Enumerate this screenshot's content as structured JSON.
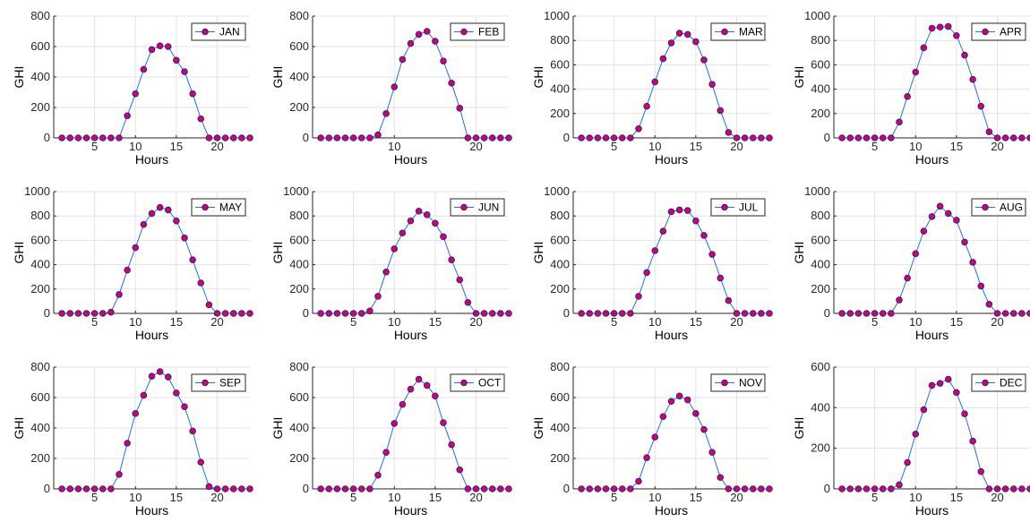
{
  "chart_data": [
    {
      "type": "line",
      "xlabel": "Hours",
      "ylabel": "GHI",
      "xlim": [
        0,
        24
      ],
      "ylim": [
        0,
        800
      ],
      "xticks": [
        5,
        10,
        15,
        20
      ],
      "yticks": [
        0,
        200,
        400,
        600,
        800
      ],
      "grid": true,
      "legend": "top-right",
      "series": [
        {
          "name": "JAN",
          "x": [
            1,
            2,
            3,
            4,
            5,
            6,
            7,
            8,
            9,
            10,
            11,
            12,
            13,
            14,
            15,
            16,
            17,
            18,
            19,
            20,
            21,
            22,
            23,
            24
          ],
          "y": [
            0,
            0,
            0,
            0,
            0,
            0,
            0,
            0,
            145,
            290,
            450,
            580,
            605,
            600,
            510,
            435,
            290,
            125,
            0,
            0,
            0,
            0,
            0,
            0
          ]
        }
      ]
    },
    {
      "type": "line",
      "xlabel": "Hours",
      "ylabel": "GHI",
      "xlim": [
        0,
        24
      ],
      "ylim": [
        0,
        800
      ],
      "xticks": [
        10,
        20
      ],
      "yticks": [
        0,
        200,
        400,
        600,
        800
      ],
      "grid": true,
      "legend": "top-right",
      "series": [
        {
          "name": "FEB",
          "x": [
            1,
            2,
            3,
            4,
            5,
            6,
            7,
            8,
            9,
            10,
            11,
            12,
            13,
            14,
            15,
            16,
            17,
            18,
            19,
            20,
            21,
            22,
            23,
            24
          ],
          "y": [
            0,
            0,
            0,
            0,
            0,
            0,
            0,
            20,
            160,
            335,
            515,
            620,
            680,
            700,
            635,
            505,
            360,
            195,
            0,
            0,
            0,
            0,
            0,
            0
          ]
        }
      ]
    },
    {
      "type": "line",
      "xlabel": "Hours",
      "ylabel": "GHI",
      "xlim": [
        0,
        24
      ],
      "ylim": [
        0,
        1000
      ],
      "xticks": [
        5,
        10,
        15,
        20
      ],
      "yticks": [
        0,
        200,
        400,
        600,
        800,
        1000
      ],
      "grid": true,
      "legend": "top-right",
      "series": [
        {
          "name": "MAR",
          "x": [
            1,
            2,
            3,
            4,
            5,
            6,
            7,
            8,
            9,
            10,
            11,
            12,
            13,
            14,
            15,
            16,
            17,
            18,
            19,
            20,
            21,
            22,
            23,
            24
          ],
          "y": [
            0,
            0,
            0,
            0,
            0,
            0,
            0,
            75,
            260,
            460,
            650,
            780,
            860,
            850,
            790,
            640,
            440,
            225,
            45,
            0,
            0,
            0,
            0,
            0
          ]
        }
      ]
    },
    {
      "type": "line",
      "xlabel": "Hours",
      "ylabel": "GHI",
      "xlim": [
        0,
        24
      ],
      "ylim": [
        0,
        1000
      ],
      "xticks": [
        5,
        10,
        15,
        20
      ],
      "yticks": [
        0,
        200,
        400,
        600,
        800,
        1000
      ],
      "grid": true,
      "legend": "top-right",
      "series": [
        {
          "name": "APR",
          "x": [
            1,
            2,
            3,
            4,
            5,
            6,
            7,
            8,
            9,
            10,
            11,
            12,
            13,
            14,
            15,
            16,
            17,
            18,
            19,
            20,
            21,
            22,
            23,
            24
          ],
          "y": [
            0,
            0,
            0,
            0,
            0,
            0,
            0,
            130,
            340,
            540,
            740,
            900,
            910,
            915,
            840,
            680,
            480,
            260,
            50,
            0,
            0,
            0,
            0,
            0
          ]
        }
      ]
    },
    {
      "type": "line",
      "xlabel": "Hours",
      "ylabel": "GHI",
      "xlim": [
        0,
        24
      ],
      "ylim": [
        0,
        1000
      ],
      "xticks": [
        5,
        10,
        15,
        20
      ],
      "yticks": [
        0,
        200,
        400,
        600,
        800,
        1000
      ],
      "grid": true,
      "legend": "top-right",
      "series": [
        {
          "name": "MAY",
          "x": [
            1,
            2,
            3,
            4,
            5,
            6,
            7,
            8,
            9,
            10,
            11,
            12,
            13,
            14,
            15,
            16,
            17,
            18,
            19,
            20,
            21,
            22,
            23,
            24
          ],
          "y": [
            0,
            0,
            0,
            0,
            0,
            0,
            10,
            155,
            355,
            540,
            730,
            820,
            870,
            850,
            760,
            620,
            440,
            250,
            70,
            0,
            0,
            0,
            0,
            0
          ]
        }
      ]
    },
    {
      "type": "line",
      "xlabel": "Hours",
      "ylabel": "GHI",
      "xlim": [
        0,
        24
      ],
      "ylim": [
        0,
        1000
      ],
      "xticks": [
        5,
        10,
        15,
        20
      ],
      "yticks": [
        0,
        200,
        400,
        600,
        800,
        1000
      ],
      "grid": true,
      "legend": "top-right",
      "series": [
        {
          "name": "JUN",
          "x": [
            1,
            2,
            3,
            4,
            5,
            6,
            7,
            8,
            9,
            10,
            11,
            12,
            13,
            14,
            15,
            16,
            17,
            18,
            19,
            20,
            21,
            22,
            23,
            24
          ],
          "y": [
            0,
            0,
            0,
            0,
            0,
            0,
            20,
            140,
            340,
            530,
            660,
            760,
            840,
            810,
            740,
            630,
            440,
            275,
            90,
            0,
            0,
            0,
            0,
            0
          ]
        }
      ]
    },
    {
      "type": "line",
      "xlabel": "Hours",
      "ylabel": "GHI",
      "xlim": [
        0,
        24
      ],
      "ylim": [
        0,
        1000
      ],
      "xticks": [
        5,
        10,
        15,
        20
      ],
      "yticks": [
        0,
        200,
        400,
        600,
        800,
        1000
      ],
      "grid": true,
      "legend": "top-right",
      "series": [
        {
          "name": "JUL",
          "x": [
            1,
            2,
            3,
            4,
            5,
            6,
            7,
            8,
            9,
            10,
            11,
            12,
            13,
            14,
            15,
            16,
            17,
            18,
            19,
            20,
            21,
            22,
            23,
            24
          ],
          "y": [
            0,
            0,
            0,
            0,
            0,
            0,
            0,
            140,
            335,
            515,
            675,
            835,
            850,
            845,
            760,
            640,
            485,
            290,
            105,
            0,
            0,
            0,
            0,
            0
          ]
        }
      ]
    },
    {
      "type": "line",
      "xlabel": "Hours",
      "ylabel": "GHI",
      "xlim": [
        0,
        24
      ],
      "ylim": [
        0,
        1000
      ],
      "xticks": [
        5,
        10,
        15,
        20
      ],
      "yticks": [
        0,
        200,
        400,
        600,
        800,
        1000
      ],
      "grid": true,
      "legend": "top-right",
      "series": [
        {
          "name": "AUG",
          "x": [
            1,
            2,
            3,
            4,
            5,
            6,
            7,
            8,
            9,
            10,
            11,
            12,
            13,
            14,
            15,
            16,
            17,
            18,
            19,
            20,
            21,
            22,
            23,
            24
          ],
          "y": [
            0,
            0,
            0,
            0,
            0,
            0,
            0,
            110,
            290,
            490,
            675,
            795,
            880,
            820,
            765,
            585,
            420,
            225,
            75,
            0,
            0,
            0,
            0,
            0
          ]
        }
      ]
    },
    {
      "type": "line",
      "xlabel": "Hours",
      "ylabel": "GHI",
      "xlim": [
        0,
        24
      ],
      "ylim": [
        0,
        800
      ],
      "xticks": [
        5,
        10,
        15,
        20
      ],
      "yticks": [
        0,
        200,
        400,
        600,
        800
      ],
      "grid": true,
      "legend": "top-right",
      "series": [
        {
          "name": "SEP",
          "x": [
            1,
            2,
            3,
            4,
            5,
            6,
            7,
            8,
            9,
            10,
            11,
            12,
            13,
            14,
            15,
            16,
            17,
            18,
            19,
            20,
            21,
            22,
            23,
            24
          ],
          "y": [
            0,
            0,
            0,
            0,
            0,
            0,
            0,
            95,
            300,
            495,
            615,
            740,
            770,
            735,
            630,
            540,
            380,
            175,
            15,
            0,
            0,
            0,
            0,
            0
          ]
        }
      ]
    },
    {
      "type": "line",
      "xlabel": "Hours",
      "ylabel": "GHI",
      "xlim": [
        0,
        24
      ],
      "ylim": [
        0,
        800
      ],
      "xticks": [
        5,
        10,
        15,
        20
      ],
      "yticks": [
        0,
        200,
        400,
        600,
        800
      ],
      "grid": true,
      "legend": "top-right",
      "series": [
        {
          "name": "OCT",
          "x": [
            1,
            2,
            3,
            4,
            5,
            6,
            7,
            8,
            9,
            10,
            11,
            12,
            13,
            14,
            15,
            16,
            17,
            18,
            19,
            20,
            21,
            22,
            23,
            24
          ],
          "y": [
            0,
            0,
            0,
            0,
            0,
            0,
            0,
            90,
            240,
            430,
            555,
            655,
            720,
            680,
            610,
            435,
            290,
            125,
            0,
            0,
            0,
            0,
            0,
            0
          ]
        }
      ]
    },
    {
      "type": "line",
      "xlabel": "Hours",
      "ylabel": "GHI",
      "xlim": [
        0,
        24
      ],
      "ylim": [
        0,
        800
      ],
      "xticks": [
        5,
        10,
        15,
        20
      ],
      "yticks": [
        0,
        200,
        400,
        600,
        800
      ],
      "grid": true,
      "legend": "top-right",
      "series": [
        {
          "name": "NOV",
          "x": [
            1,
            2,
            3,
            4,
            5,
            6,
            7,
            8,
            9,
            10,
            11,
            12,
            13,
            14,
            15,
            16,
            17,
            18,
            19,
            20,
            21,
            22,
            23,
            24
          ],
          "y": [
            0,
            0,
            0,
            0,
            0,
            0,
            0,
            50,
            205,
            340,
            475,
            575,
            610,
            585,
            495,
            390,
            240,
            75,
            0,
            0,
            0,
            0,
            0,
            0
          ]
        }
      ]
    },
    {
      "type": "line",
      "xlabel": "Hours",
      "ylabel": "GHI",
      "xlim": [
        0,
        24
      ],
      "ylim": [
        0,
        600
      ],
      "xticks": [
        5,
        10,
        15,
        20
      ],
      "yticks": [
        0,
        200,
        400,
        600
      ],
      "grid": true,
      "legend": "top-right",
      "series": [
        {
          "name": "DEC",
          "x": [
            1,
            2,
            3,
            4,
            5,
            6,
            7,
            8,
            9,
            10,
            11,
            12,
            13,
            14,
            15,
            16,
            17,
            18,
            19,
            20,
            21,
            22,
            23,
            24
          ],
          "y": [
            0,
            0,
            0,
            0,
            0,
            0,
            0,
            20,
            130,
            270,
            390,
            510,
            520,
            540,
            475,
            370,
            235,
            85,
            0,
            0,
            0,
            0,
            0,
            0
          ]
        }
      ]
    }
  ],
  "style": {
    "line_color": "#1f6fe5",
    "marker_fill": "#e0004d",
    "marker_edge": "#2020c0",
    "grid_color": "#e3e3e3",
    "axis_color": "#262626"
  }
}
